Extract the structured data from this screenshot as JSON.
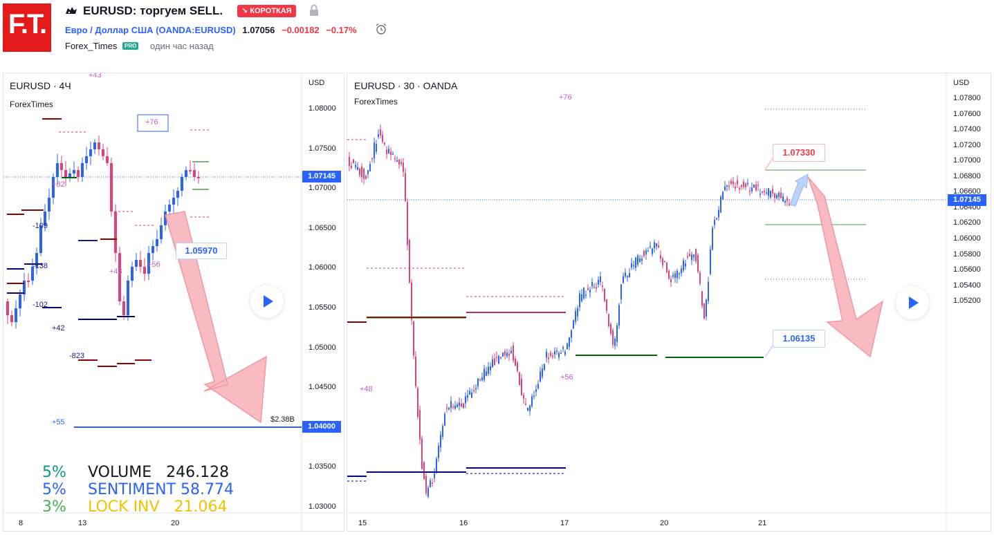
{
  "header": {
    "logo_text": "F.T.",
    "title": "EURUSD: торгуем SELL.",
    "direction_badge": "↘ КОРОТКАЯ",
    "instrument_name": "Евро / Доллар США",
    "instrument_code": "(OANDA:EURUSD)",
    "last_price": "1.07056",
    "change": "−0.00182",
    "change_pct": "−0.17%",
    "author": "Forex_Times",
    "author_badge": "PRO",
    "published": "один час назад",
    "icons": [
      "bear-icon",
      "lock-icon",
      "alarm-clock-icon"
    ]
  },
  "left_chart": {
    "symbol": "EURUSD · 4Ч",
    "indicator": "ForexTimes",
    "axis_unit": "USD",
    "y_ticks": [
      "1.08000",
      "1.07500",
      "1.07000",
      "1.06500",
      "1.06000",
      "1.05500",
      "1.05000",
      "1.04500",
      "1.04000",
      "1.03500",
      "1.03000"
    ],
    "x_ticks": [
      "8",
      "13",
      "20"
    ],
    "current_price": "1.07145",
    "level_price": "1.04000",
    "level_label": "$2.38B",
    "callout": "1.05970",
    "annotations": [
      "+43",
      "+76",
      "+82",
      "-109",
      "-138",
      "-102",
      "+42",
      "-823",
      "+48",
      "+56",
      "+55"
    ],
    "stats": [
      {
        "pct": "5%",
        "label": "VOLUME",
        "value": "246.128",
        "color": "#131722",
        "pct_color": "#089981"
      },
      {
        "pct": "5%",
        "label": "SENTIMENT",
        "value": "58.774",
        "color": "#2962ff",
        "pct_color": "#2962ff"
      },
      {
        "pct": "3%",
        "label": "LOCK INV",
        "value": "21.064",
        "color": "#f2c200",
        "pct_color": "#4caf50"
      }
    ]
  },
  "right_chart": {
    "symbol": "EURUSD · 30 · OANDA",
    "indicator": "ForexTimes",
    "axis_unit": "USD",
    "y_ticks": [
      "1.07800",
      "1.07600",
      "1.07400",
      "1.07200",
      "1.07000",
      "1.06800",
      "1.06600",
      "1.06400",
      "1.06200",
      "1.06000",
      "1.05800",
      "1.05600",
      "1.05400",
      "1.05200"
    ],
    "x_ticks": [
      "15",
      "16",
      "17",
      "20",
      "21"
    ],
    "current_price": "1.07145",
    "callout_high": "1.07330",
    "callout_low": "1.06135",
    "annotations": [
      "+76",
      "+48",
      "+56"
    ]
  },
  "colors": {
    "up": "#2962ff",
    "down": "#e0407b",
    "accent_red": "#f23645",
    "arrow_fill": "#f8b4bb"
  }
}
